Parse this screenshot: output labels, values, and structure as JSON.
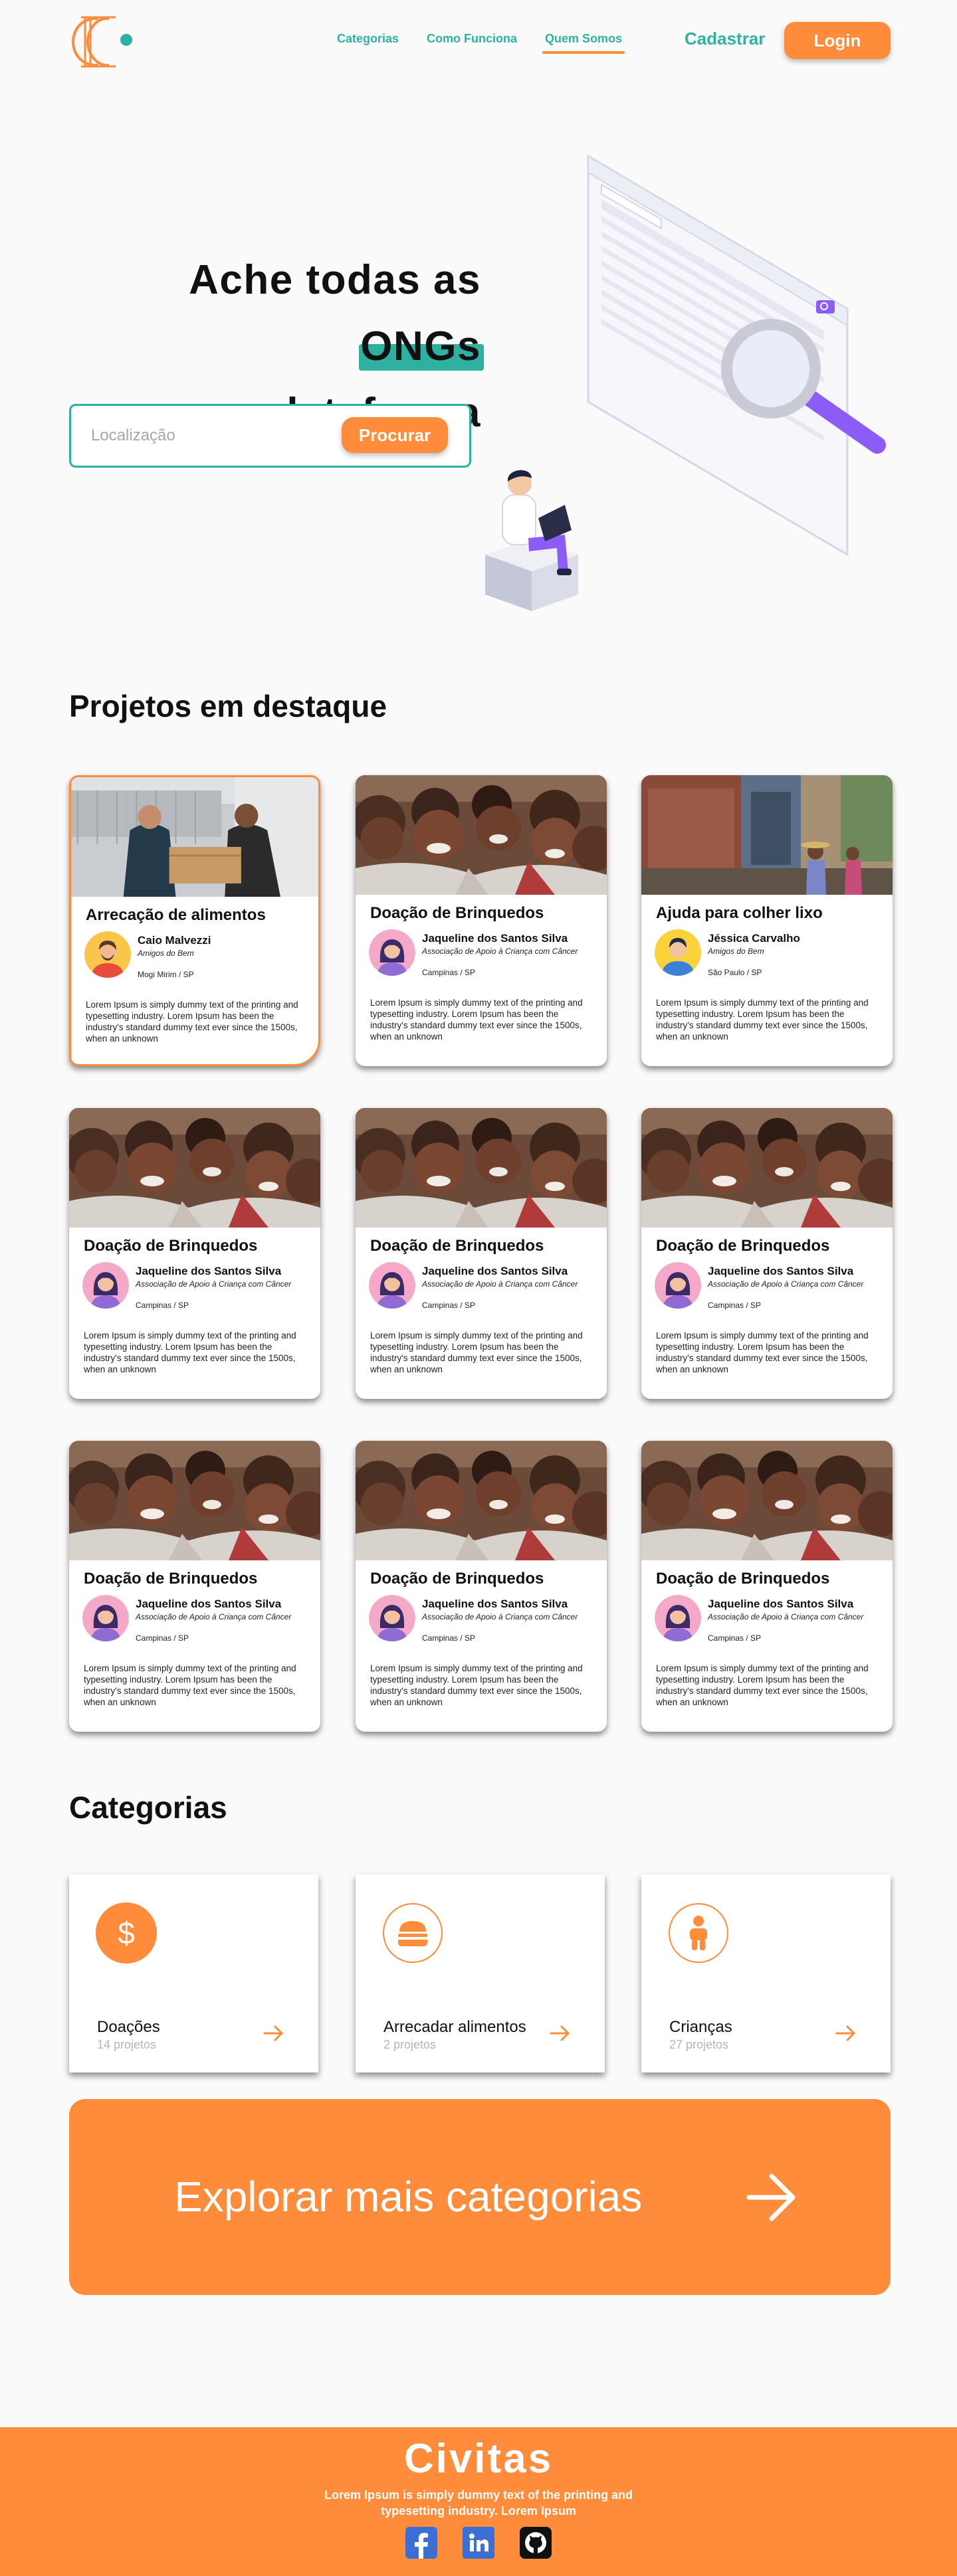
{
  "header": {
    "nav": [
      {
        "label": "Categorias",
        "active": false
      },
      {
        "label": "Como Funciona",
        "active": false
      },
      {
        "label": "Quem Somos",
        "active": true
      }
    ],
    "cadastrar_label": "Cadastrar",
    "login_label": "Login"
  },
  "hero": {
    "title_prefix": "Ache todas as ",
    "title_highlight": "ONGs",
    "title_line2": "em uma plataforma",
    "search_placeholder": "Localização",
    "search_button": "Procurar"
  },
  "projects": {
    "title_bold": "Projetos",
    "title_rest": " em destaque",
    "cards": [
      {
        "title": "Arrecação de alimentos",
        "author": "Caio Malvezzi",
        "org": "Amigos do Bem",
        "location": "Mogi Mirim / SP",
        "description": "Lorem Ipsum is simply dummy text of the printing and typesetting industry. Lorem Ipsum has been the industry's standard dummy text ever since the 1500s, when an unknown",
        "photo": "food-donation-photo",
        "avatar": "male-avatar-yellow"
      },
      {
        "title": "Doação de Brinquedos",
        "author": "Jaqueline dos Santos Silva",
        "org": "Associação de Apoio à Criança com Câncer",
        "location": "Campinas / SP",
        "description": "Lorem Ipsum is simply dummy text of the printing and typesetting industry. Lorem Ipsum has been the industry's standard dummy text ever since the 1500s, when an unknown",
        "photo": "children-photo",
        "avatar": "female-avatar-pink"
      },
      {
        "title": "Ajuda para colher lixo",
        "author": "Jéssica Carvalho",
        "org": "Amigos do Bem",
        "location": "São Paulo / SP",
        "description": "Lorem Ipsum is simply dummy text of the printing and typesetting industry. Lorem Ipsum has been the industry's standard dummy text ever since the 1500s, when an unknown",
        "photo": "street-photo",
        "avatar": "male-avatar-blue"
      },
      {
        "title": "Doação de Brinquedos",
        "author": "Jaqueline dos Santos Silva",
        "org": "Associação de Apoio à Criança com Câncer",
        "location": "Campinas / SP",
        "description": "Lorem Ipsum is simply dummy text of the printing and typesetting industry. Lorem Ipsum has been the industry's standard dummy text ever since the 1500s, when an unknown",
        "photo": "children-photo",
        "avatar": "female-avatar-pink"
      },
      {
        "title": "Doação de Brinquedos",
        "author": "Jaqueline dos Santos Silva",
        "org": "Associação de Apoio à Criança com Câncer",
        "location": "Campinas / SP",
        "description": "Lorem Ipsum is simply dummy text of the printing and typesetting industry. Lorem Ipsum has been the industry's standard dummy text ever since the 1500s, when an unknown",
        "photo": "children-photo",
        "avatar": "female-avatar-pink"
      },
      {
        "title": "Doação de Brinquedos",
        "author": "Jaqueline dos Santos Silva",
        "org": "Associação de Apoio à Criança com Câncer",
        "location": "Campinas / SP",
        "description": "Lorem Ipsum is simply dummy text of the printing and typesetting industry. Lorem Ipsum has been the industry's standard dummy text ever since the 1500s, when an unknown",
        "photo": "children-photo",
        "avatar": "female-avatar-pink"
      },
      {
        "title": "Doação de Brinquedos",
        "author": "Jaqueline dos Santos Silva",
        "org": "Associação de Apoio à Criança com Câncer",
        "location": "Campinas / SP",
        "description": "Lorem Ipsum is simply dummy text of the printing and typesetting industry. Lorem Ipsum has been the industry's standard dummy text ever since the 1500s, when an unknown",
        "photo": "children-photo",
        "avatar": "female-avatar-pink"
      },
      {
        "title": "Doação de Brinquedos",
        "author": "Jaqueline dos Santos Silva",
        "org": "Associação de Apoio à Criança com Câncer",
        "location": "Campinas / SP",
        "description": "Lorem Ipsum is simply dummy text of the printing and typesetting industry. Lorem Ipsum has been the industry's standard dummy text ever since the 1500s, when an unknown",
        "photo": "children-photo",
        "avatar": "female-avatar-pink"
      },
      {
        "title": "Doação de Brinquedos",
        "author": "Jaqueline dos Santos Silva",
        "org": "Associação de Apoio à Criança com Câncer",
        "location": "Campinas / SP",
        "description": "Lorem Ipsum is simply dummy text of the printing and typesetting industry. Lorem Ipsum has been the industry's standard dummy text ever since the 1500s, when an unknown",
        "photo": "children-photo",
        "avatar": "female-avatar-pink"
      }
    ]
  },
  "categories": {
    "title": "Categorias",
    "items": [
      {
        "name": "Doações",
        "count": "14 projetos",
        "icon": "dollar-icon"
      },
      {
        "name": "Arrecadar alimentos",
        "count": "2 projetos",
        "icon": "burger-icon"
      },
      {
        "name": "Crianças",
        "count": "27 projetos",
        "icon": "child-icon"
      }
    ],
    "explore_label": "Explorar mais categorias"
  },
  "footer": {
    "brand": "Civitas",
    "tagline": "Lorem Ipsum is simply dummy text of the printing and typesetting industry. Lorem Ipsum",
    "social": [
      "facebook-icon",
      "linkedin-icon",
      "github-icon"
    ]
  },
  "colors": {
    "accent": "#ff8c3a",
    "teal": "#2fb1a2"
  }
}
